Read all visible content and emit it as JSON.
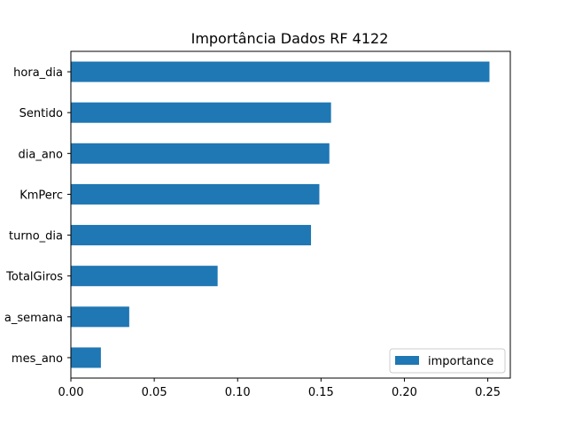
{
  "chart_data": {
    "type": "bar",
    "orientation": "horizontal",
    "title": "Importância Dados RF 4122",
    "xlabel": "",
    "ylabel": "",
    "categories": [
      "hora_dia",
      "Sentido",
      "dia_ano",
      "KmPerc",
      "turno_dia",
      "TotalGiros",
      "a_semana",
      "mes_ano"
    ],
    "series": [
      {
        "name": "importance",
        "values": [
          0.251,
          0.156,
          0.155,
          0.149,
          0.144,
          0.088,
          0.035,
          0.018
        ]
      }
    ],
    "xlim": [
      0.0,
      0.2635
    ],
    "xticks": [
      0.0,
      0.05,
      0.1,
      0.15,
      0.2,
      0.25
    ],
    "xtick_labels": [
      "0.00",
      "0.05",
      "0.10",
      "0.15",
      "0.20",
      "0.25"
    ],
    "grid": false,
    "legend": "bottom-right",
    "color": "#1f77b4"
  }
}
